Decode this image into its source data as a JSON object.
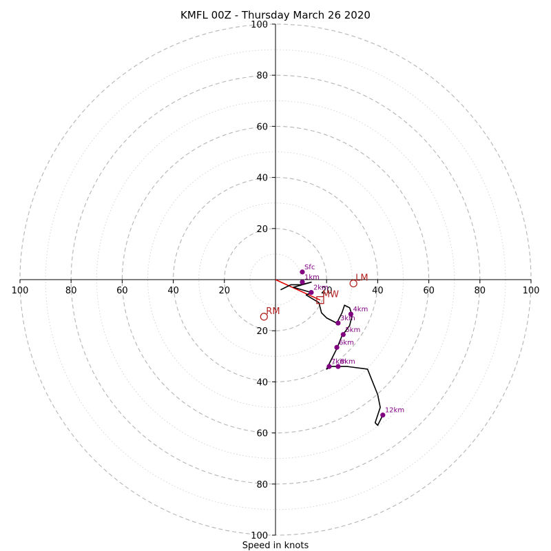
{
  "chart_data": {
    "type": "hodograph",
    "title": "KMFL 00Z - Thursday March 26 2020",
    "xlabel": "Speed in knots",
    "ring_max": 100,
    "major_rings": [
      20,
      40,
      60,
      80,
      100
    ],
    "minor_rings": [
      10,
      30,
      50,
      70,
      90
    ],
    "tick_values": [
      20,
      40,
      60,
      80,
      100
    ],
    "tick_labels": [
      "20",
      "40",
      "60",
      "80",
      "100"
    ],
    "hodograph": {
      "u": [
        2,
        6,
        10,
        14,
        7,
        14,
        12,
        17,
        18,
        20,
        24,
        26,
        27,
        29,
        30,
        29,
        26,
        24,
        22,
        20,
        22,
        24,
        28,
        36,
        40,
        41,
        39,
        40,
        42
      ],
      "v": [
        -4,
        -2,
        -2,
        -1,
        -3,
        -5,
        -6,
        -9,
        -13,
        -15,
        -17,
        -13,
        -10,
        -11,
        -14,
        -18,
        -22,
        -27,
        -31,
        -35,
        -34,
        -34,
        -34,
        -35,
        -45,
        -50,
        -56,
        -57,
        -53
      ]
    },
    "height_markers": [
      {
        "label": "Sfc",
        "u": 10.5,
        "v": 3
      },
      {
        "label": "1km",
        "u": 10.5,
        "v": -1
      },
      {
        "label": "2km",
        "u": 14,
        "v": -5
      },
      {
        "label": "3km",
        "u": 24.5,
        "v": -17
      },
      {
        "label": "4km",
        "u": 29.5,
        "v": -13.5
      },
      {
        "label": "5km",
        "u": 26.5,
        "v": -21.5
      },
      {
        "label": "6km",
        "u": 24,
        "v": -26.5
      },
      {
        "label": "7km",
        "u": 21,
        "v": -34
      },
      {
        "label": "8km",
        "u": 24.5,
        "v": -34
      },
      {
        "label": "12km",
        "u": 42,
        "v": -53
      }
    ],
    "storm_motion": [
      {
        "label": "RM",
        "u": -4.5,
        "v": -14.5,
        "marker": "circle"
      },
      {
        "label": "LM",
        "u": 30.5,
        "v": -1.5,
        "marker": "circle"
      },
      {
        "label": "MW",
        "u": 17.5,
        "v": -8,
        "marker": "square"
      }
    ],
    "shear_vector": {
      "u0": 0,
      "v0": 0,
      "u1": 17.5,
      "v1": -8
    },
    "colors": {
      "hodograph": "#000000",
      "height_markers": "#800080",
      "storm_motion": "#b22222",
      "shear_vector": "#e00000",
      "major_rings": "#b4b4b4",
      "minor_rings": "#cfcfcf"
    }
  }
}
